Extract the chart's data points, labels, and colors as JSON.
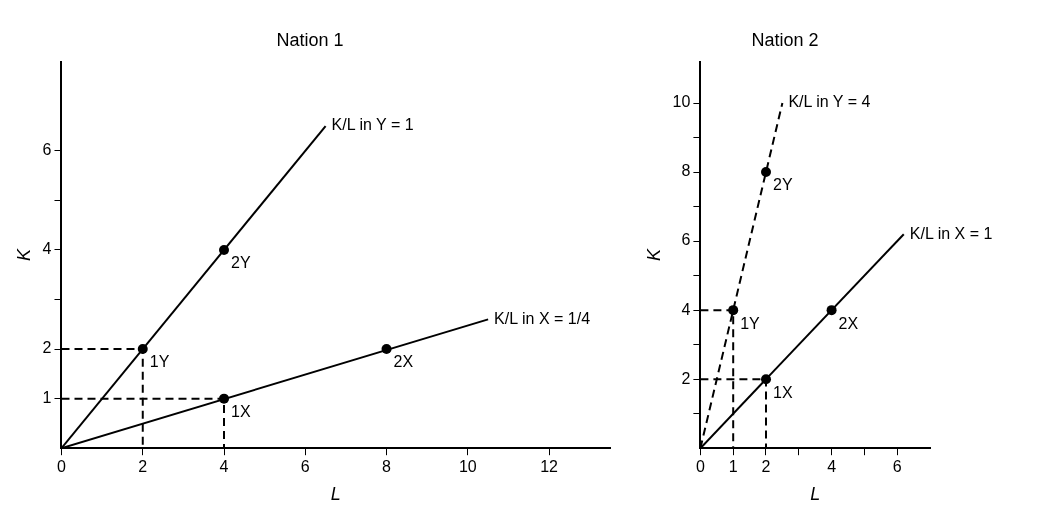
{
  "chart_data": [
    {
      "type": "line",
      "title": "Nation 1",
      "xlabel": "L",
      "ylabel": "K",
      "xlim": [
        0,
        13.5
      ],
      "ylim": [
        0,
        7.8
      ],
      "xticks": [
        0,
        2,
        4,
        6,
        8,
        10,
        12
      ],
      "yticks": [
        1,
        2,
        {
          "value": 3,
          "label": null
        },
        4,
        {
          "value": 5,
          "label": null
        },
        6
      ],
      "grid": false,
      "legend": false,
      "series": [
        {
          "name": "K/L in Y = 1",
          "type": "line",
          "color": "#000000",
          "x": [
            0,
            6.5
          ],
          "values": [
            0,
            6.5
          ],
          "marker": "none",
          "line_style": "solid"
        },
        {
          "name": "K/L in X = 1/4",
          "type": "line",
          "color": "#000000",
          "x": [
            0,
            10.5
          ],
          "values": [
            0,
            2.6
          ],
          "marker": "none",
          "line_style": "solid"
        },
        {
          "type": "line",
          "color": "#000000",
          "x": [
            0,
            2,
            2
          ],
          "values": [
            2,
            2,
            0
          ],
          "marker": "none",
          "line_style": "dashed"
        },
        {
          "type": "line",
          "color": "#000000",
          "x": [
            0,
            4,
            4
          ],
          "values": [
            1,
            1,
            0
          ],
          "marker": "none",
          "line_style": "dashed"
        },
        {
          "type": "scatter",
          "color": "#000000",
          "x": [
            2,
            4,
            4,
            8
          ],
          "values": [
            2,
            4,
            1,
            2
          ],
          "marker": "circle"
        }
      ],
      "annotations": [
        {
          "text": "1Y",
          "x": 2,
          "y": 2
        },
        {
          "text": "2Y",
          "x": 4,
          "y": 4
        },
        {
          "text": "1X",
          "x": 4,
          "y": 1
        },
        {
          "text": "2X",
          "x": 8,
          "y": 2
        }
      ]
    },
    {
      "type": "line",
      "title": "Nation 2",
      "xlabel": "L",
      "ylabel": "K",
      "xlim": [
        0,
        7
      ],
      "ylim": [
        0,
        11.2
      ],
      "xticks": [
        0,
        1,
        2,
        {
          "value": 3,
          "label": null
        },
        4,
        {
          "value": 5,
          "label": null
        },
        6
      ],
      "yticks": [
        {
          "value": 1,
          "label": null
        },
        2,
        {
          "value": 3,
          "label": null
        },
        4,
        {
          "value": 5,
          "label": null
        },
        6,
        {
          "value": 7,
          "label": null
        },
        8,
        {
          "value": 9,
          "label": null
        },
        10
      ],
      "grid": false,
      "legend": false,
      "series": [
        {
          "name": "K/L in Y = 4",
          "type": "line",
          "color": "#000000",
          "x": [
            0,
            2.5
          ],
          "values": [
            0,
            10
          ],
          "marker": "none",
          "line_style": "dashed"
        },
        {
          "name": "K/L in X = 1",
          "type": "line",
          "color": "#000000",
          "x": [
            0,
            6.2
          ],
          "values": [
            0,
            6.2
          ],
          "marker": "none",
          "line_style": "solid"
        },
        {
          "type": "line",
          "color": "#000000",
          "x": [
            0,
            1,
            1
          ],
          "values": [
            4,
            4,
            0
          ],
          "marker": "none",
          "line_style": "dashed"
        },
        {
          "type": "line",
          "color": "#000000",
          "x": [
            0,
            2,
            2
          ],
          "values": [
            2,
            2,
            0
          ],
          "marker": "none",
          "line_style": "dashed"
        },
        {
          "type": "scatter",
          "color": "#000000",
          "x": [
            1,
            2,
            2,
            4
          ],
          "values": [
            4,
            8,
            2,
            4
          ],
          "marker": "circle"
        }
      ],
      "annotations": [
        {
          "text": "1Y",
          "x": 1,
          "y": 4
        },
        {
          "text": "2Y",
          "x": 2,
          "y": 8
        },
        {
          "text": "1X",
          "x": 2,
          "y": 2
        },
        {
          "text": "2X",
          "x": 4,
          "y": 4
        }
      ]
    }
  ]
}
